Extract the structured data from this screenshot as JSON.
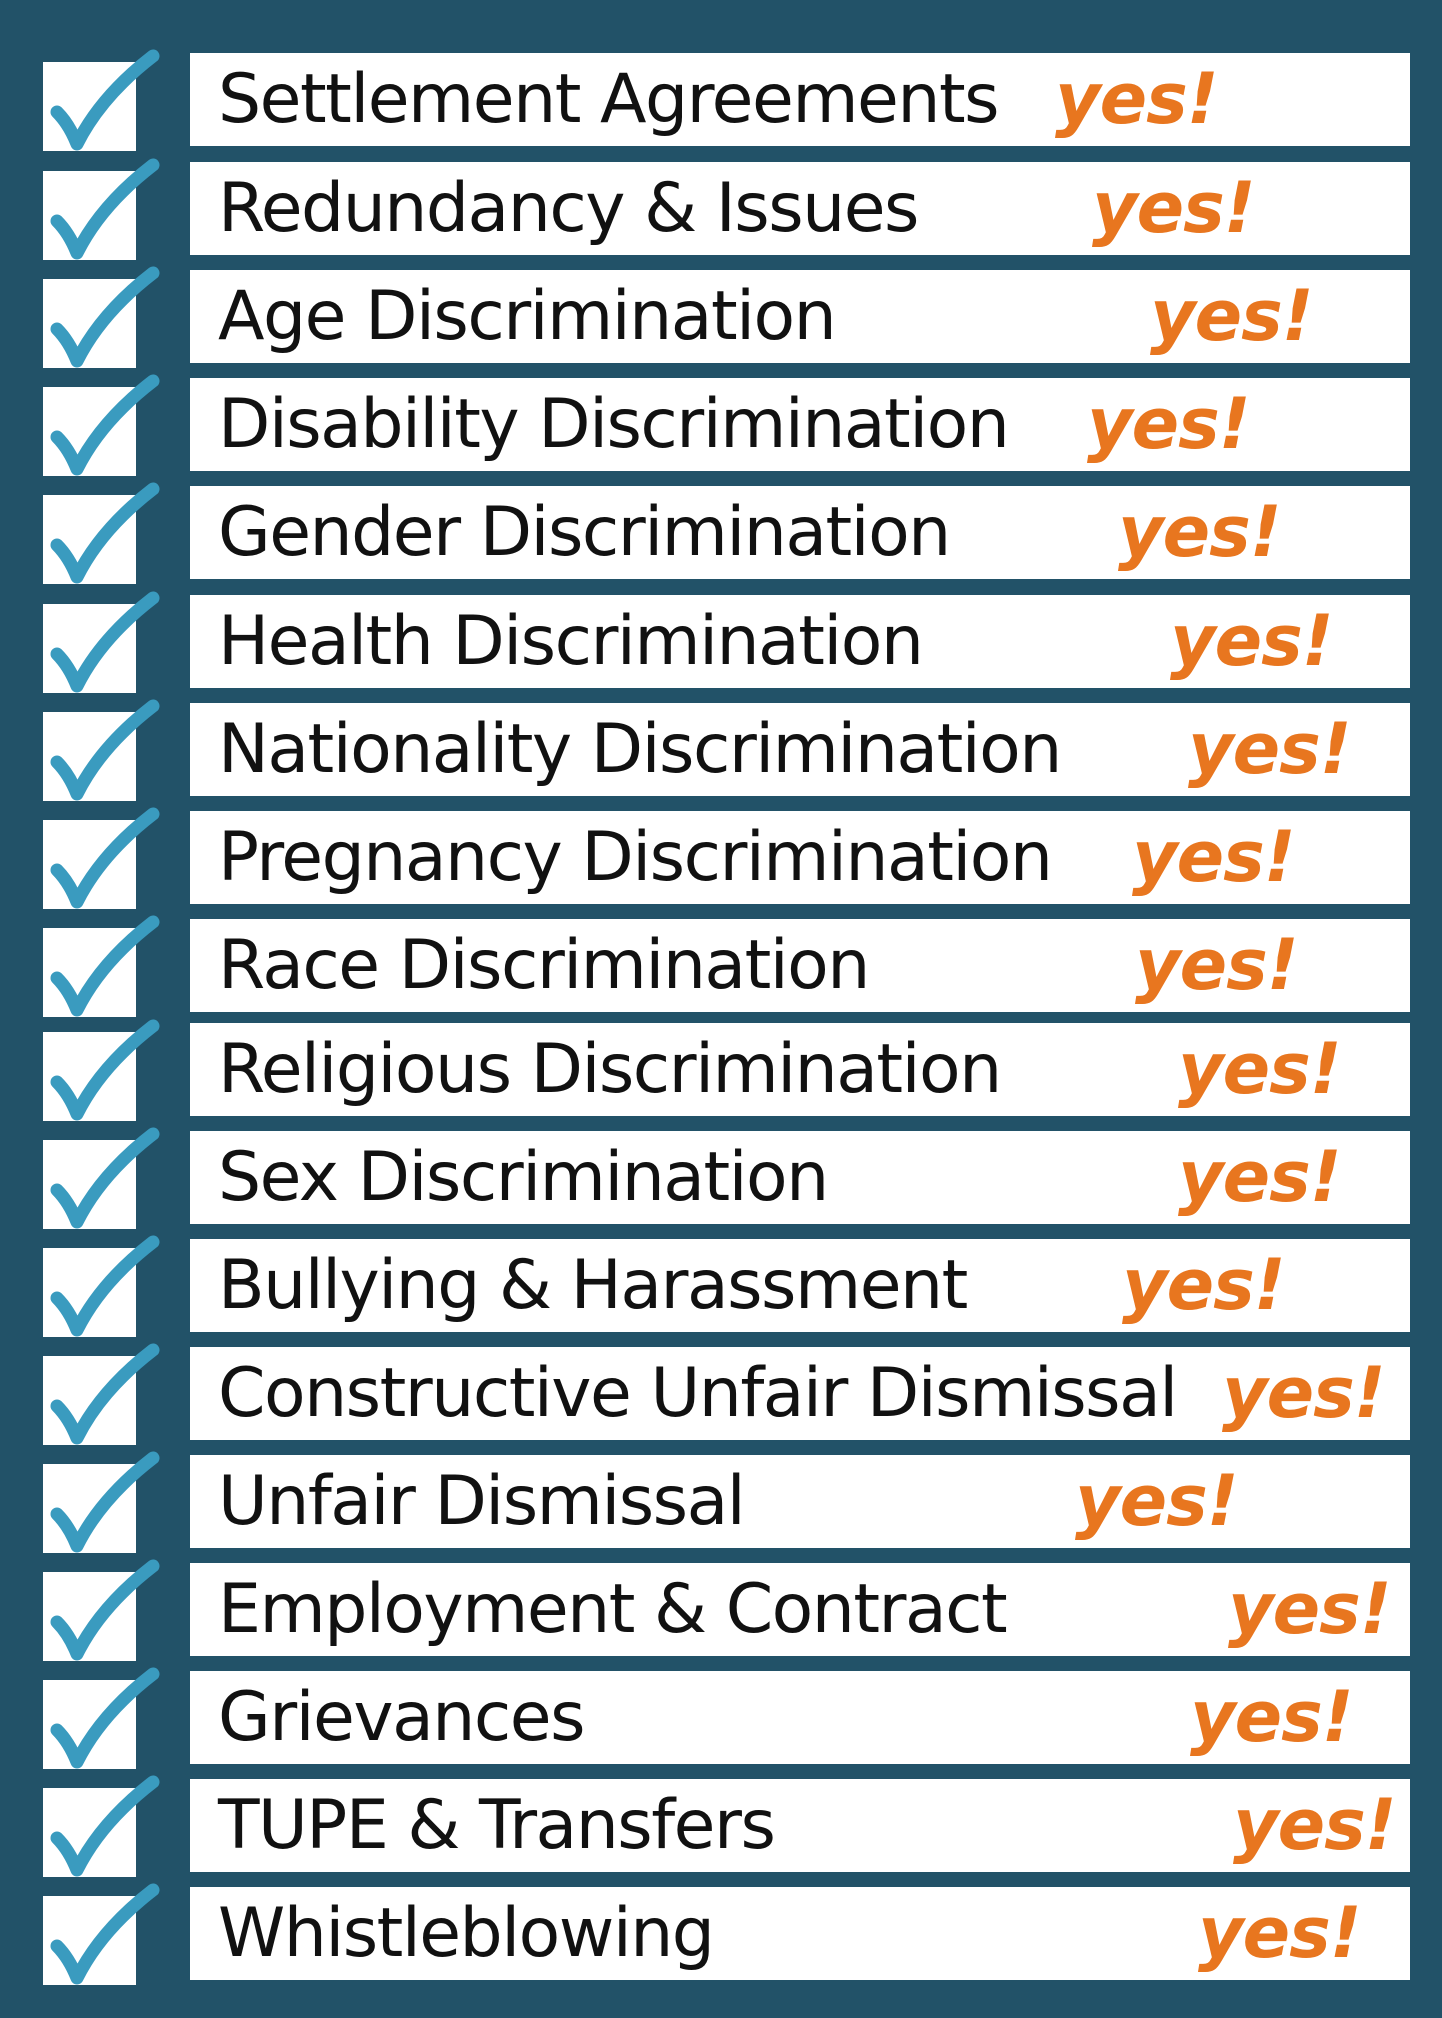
{
  "colors": {
    "background": "#225268",
    "row_fill": "#ffffff",
    "checkmark": "#3a9bbf",
    "yes": "#e8761f",
    "label_text": "#111111"
  },
  "icons": {
    "checkmark": "checkmark-icon"
  },
  "items": [
    {
      "label": "Settlement Agreements",
      "status": "yes!"
    },
    {
      "label": "Redundancy & Issues",
      "status": "yes!"
    },
    {
      "label": "Age Discrimination",
      "status": "yes!"
    },
    {
      "label": "Disability Discrimination",
      "status": "yes!"
    },
    {
      "label": "Gender Discrimination",
      "status": "yes!"
    },
    {
      "label": "Health Discrimination",
      "status": "yes!"
    },
    {
      "label": "Nationality Discrimination",
      "status": "yes!"
    },
    {
      "label": "Pregnancy Discrimination",
      "status": "yes!"
    },
    {
      "label": "Race Discrimination",
      "status": "yes!"
    },
    {
      "label": "Religious Discrimination",
      "status": "yes!"
    },
    {
      "label": "Sex Discrimination",
      "status": "yes!"
    },
    {
      "label": "Bullying & Harassment",
      "status": "yes!"
    },
    {
      "label": "Constructive Unfair Dismissal",
      "status": "yes!"
    },
    {
      "label": "Unfair Dismissal",
      "status": "yes!"
    },
    {
      "label": "Employment & Contract",
      "status": "yes!"
    },
    {
      "label": "Grievances",
      "status": "yes!"
    },
    {
      "label": "TUPE & Transfers",
      "status": "yes!"
    },
    {
      "label": "Whistleblowing",
      "status": "yes!"
    }
  ]
}
